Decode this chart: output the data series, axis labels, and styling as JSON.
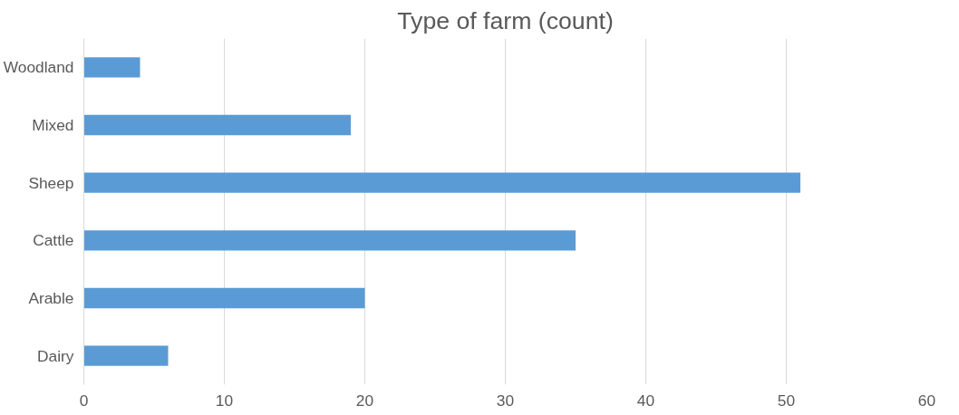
{
  "chart_data": {
    "type": "bar",
    "title": "Type of farm (count)",
    "orientation": "horizontal",
    "categories": [
      "Woodland",
      "Mixed",
      "Sheep",
      "Cattle",
      "Arable",
      "Dairy"
    ],
    "values": [
      4,
      19,
      51,
      35,
      20,
      6
    ],
    "color": "#5b9bd5",
    "xlim": [
      0,
      60
    ],
    "xticks": [
      0,
      10,
      20,
      30,
      40,
      50,
      60
    ],
    "grid": "x"
  }
}
